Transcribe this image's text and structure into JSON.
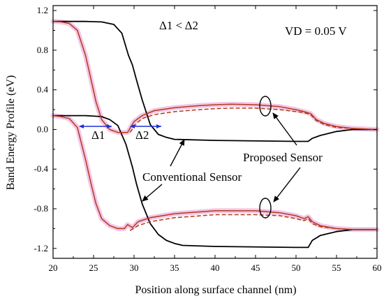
{
  "chart_data": {
    "type": "line",
    "xlabel": "Position along surface channel (nm)",
    "ylabel": "Band Energy Profile (eV)",
    "xlim": [
      20,
      60
    ],
    "ylim": [
      -1.3,
      1.25
    ],
    "xticks": [
      "20",
      "25",
      "30",
      "35",
      "40",
      "45",
      "50",
      "55",
      "60"
    ],
    "yticks": [
      "1.2",
      "0.8",
      "0.4",
      "0.0",
      "-0.4",
      "-0.8",
      "-1.2"
    ],
    "colors": {
      "conventional": "#000000",
      "proposed": "#b23a1a",
      "highlight": "#f3c6e6",
      "arrow": "#1f2fd6"
    },
    "series": [
      {
        "group": "conventional",
        "style": "solid",
        "x": [
          20,
          24,
          26,
          27.5,
          28.5,
          29.3,
          29.8,
          30.3,
          31,
          32,
          33,
          34,
          35,
          40,
          50,
          51.5,
          52,
          53,
          55,
          57,
          60
        ],
        "y": [
          1.09,
          1.09,
          1.085,
          1.06,
          0.97,
          0.75,
          0.65,
          0.5,
          0.3,
          0.05,
          -0.05,
          -0.08,
          -0.1,
          -0.11,
          -0.12,
          -0.12,
          -0.09,
          -0.06,
          -0.02,
          0.0,
          0.0
        ]
      },
      {
        "group": "conventional",
        "style": "solid",
        "x": [
          20,
          24,
          26,
          27,
          28,
          29,
          29.8,
          30.3,
          31,
          32,
          33,
          34,
          35,
          36,
          40,
          50,
          51.5,
          52,
          53,
          55,
          57,
          60
        ],
        "y": [
          0.14,
          0.14,
          0.13,
          0.1,
          0.04,
          -0.15,
          -0.38,
          -0.55,
          -0.75,
          -0.95,
          -1.06,
          -1.12,
          -1.15,
          -1.17,
          -1.18,
          -1.19,
          -1.19,
          -1.12,
          -1.07,
          -1.03,
          -1.01,
          -1.01
        ]
      },
      {
        "group": "proposed",
        "style": "solid",
        "x": [
          20,
          21,
          22,
          23,
          24,
          24.7,
          25.3,
          26,
          27,
          28,
          29.2,
          30,
          31,
          32.5,
          35,
          38,
          40,
          42,
          45,
          48,
          50,
          51,
          51.8,
          52.5,
          53.5,
          55,
          57,
          60
        ],
        "y": [
          1.09,
          1.085,
          1.07,
          1.0,
          0.75,
          0.5,
          0.28,
          0.1,
          0.0,
          -0.03,
          -0.03,
          0.08,
          0.14,
          0.19,
          0.22,
          0.24,
          0.25,
          0.255,
          0.25,
          0.23,
          0.2,
          0.18,
          0.16,
          0.1,
          0.06,
          0.03,
          0.01,
          0.0
        ]
      },
      {
        "group": "proposed",
        "style": "dashed",
        "x": [
          29.5,
          30.3,
          31,
          32.5,
          35,
          38,
          40,
          42,
          45,
          48,
          50,
          51,
          51.8,
          52.5,
          53.5,
          55,
          57,
          60
        ],
        "y": [
          -0.03,
          0.06,
          0.11,
          0.15,
          0.18,
          0.2,
          0.21,
          0.215,
          0.215,
          0.2,
          0.18,
          0.17,
          0.15,
          0.09,
          0.05,
          0.02,
          0.01,
          0.0
        ]
      },
      {
        "group": "proposed",
        "style": "solid",
        "x": [
          20,
          21,
          22,
          23,
          24,
          24.7,
          25.3,
          26,
          27,
          28,
          28.8,
          29.2,
          29.8,
          30.5,
          32,
          35,
          40,
          45,
          48,
          50,
          51,
          51.5,
          52,
          53,
          55,
          57,
          60
        ],
        "y": [
          0.14,
          0.13,
          0.11,
          0.02,
          -0.3,
          -0.55,
          -0.75,
          -0.9,
          -0.97,
          -1.0,
          -1.0,
          -0.96,
          -0.99,
          -0.93,
          -0.89,
          -0.85,
          -0.82,
          -0.82,
          -0.84,
          -0.87,
          -0.9,
          -0.88,
          -0.93,
          -0.97,
          -1.0,
          -1.01,
          -1.01
        ]
      },
      {
        "group": "proposed",
        "style": "dashed",
        "x": [
          29.5,
          30.5,
          32,
          35,
          40,
          45,
          48,
          50,
          51,
          51.5,
          52,
          53,
          55,
          57,
          60
        ],
        "y": [
          -1.02,
          -0.97,
          -0.93,
          -0.89,
          -0.86,
          -0.86,
          -0.87,
          -0.9,
          -0.92,
          -0.9,
          -0.95,
          -0.98,
          -1.0,
          -1.01,
          -1.01
        ]
      }
    ],
    "annotations": {
      "delta_relation": "Δ1 < Δ2",
      "vd": "VD = 0.05 V",
      "delta1": "Δ1",
      "delta2": "Δ2",
      "proposed": "Proposed Sensor",
      "conventional": "Conventional Sensor"
    }
  }
}
